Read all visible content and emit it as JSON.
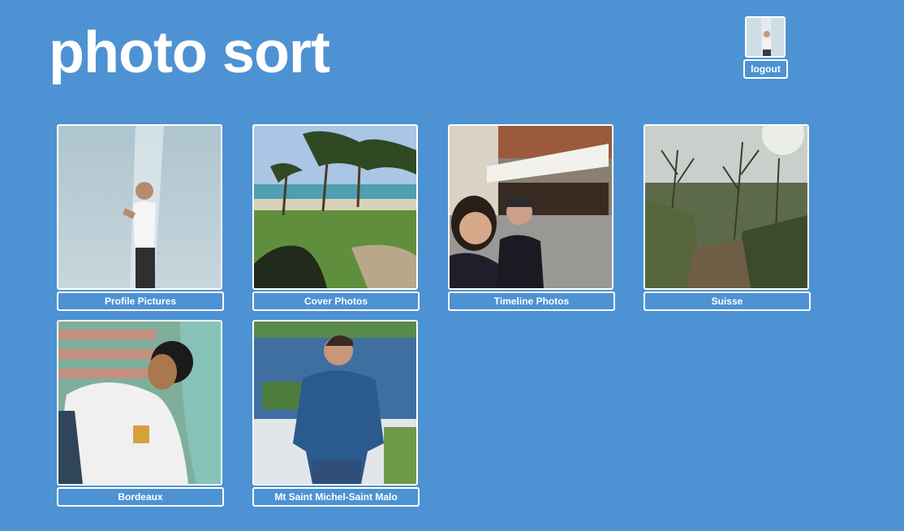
{
  "header": {
    "title": "photo sort",
    "logout_label": "logout"
  },
  "albums": [
    {
      "label": "Profile Pictures"
    },
    {
      "label": "Cover Photos"
    },
    {
      "label": "Timeline Photos"
    },
    {
      "label": "Suisse"
    },
    {
      "label": "Bordeaux"
    },
    {
      "label": "Mt Saint Michel-Saint Malo"
    }
  ],
  "colors": {
    "background": "#4d92d3",
    "border": "#ffffff",
    "text": "#ffffff"
  }
}
